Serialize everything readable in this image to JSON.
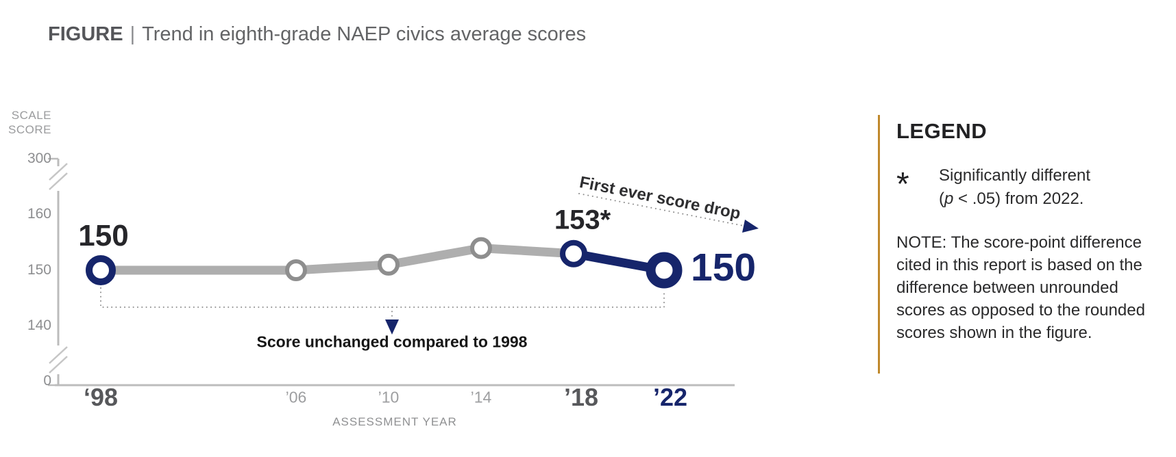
{
  "title": {
    "prefix": "FIGURE",
    "separator": "|",
    "text": "Trend in eighth-grade NAEP civics average scores"
  },
  "chart_data": {
    "type": "line",
    "title": "Trend in eighth-grade NAEP civics average scores",
    "xlabel": "ASSESSMENT YEAR",
    "ylabel_lines": [
      "SCALE",
      "SCORE"
    ],
    "x_years": [
      1998,
      2006,
      2010,
      2014,
      2018,
      2022
    ],
    "x_tick_labels": [
      "‘98",
      "’06",
      "’10",
      "’14",
      "’18",
      "’22"
    ],
    "x_tick_emphasis": [
      "strong",
      "normal",
      "normal",
      "normal",
      "strong",
      "accent"
    ],
    "values": [
      150,
      150,
      151,
      154,
      153,
      150
    ],
    "point_labels": [
      "150",
      "",
      "",
      "",
      "153*",
      "150"
    ],
    "y_tick_labels": [
      "0",
      "140",
      "150",
      "160",
      "300"
    ],
    "y_axis_broken": true,
    "y_range_shown": [
      140,
      160
    ],
    "highlight_segment": {
      "from_year": 2018,
      "to_year": 2022
    },
    "annotations": [
      {
        "text": "First ever score drop",
        "target": "decline from 2018 to 2022"
      },
      {
        "text": "Score unchanged compared to 1998",
        "target": "1998 vs 2022 comparison bracket"
      }
    ],
    "colors": {
      "highlight_navy": "#16256b",
      "trend_gray": "#aeaeae",
      "marker_gray": "#8e8e8e",
      "axis_gray": "#bcbcbc",
      "accent_gold": "#c0892c"
    }
  },
  "legend": {
    "heading": "LEGEND",
    "item": {
      "symbol": "*",
      "line1": "Significantly different",
      "line2_open": "(",
      "line2_p": "p",
      "line2_rest": " < .05) from 2022."
    },
    "note": "NOTE: The score-point difference cited in this report is based on the difference between unrounded scores as opposed to the rounded scores shown in the figure."
  }
}
